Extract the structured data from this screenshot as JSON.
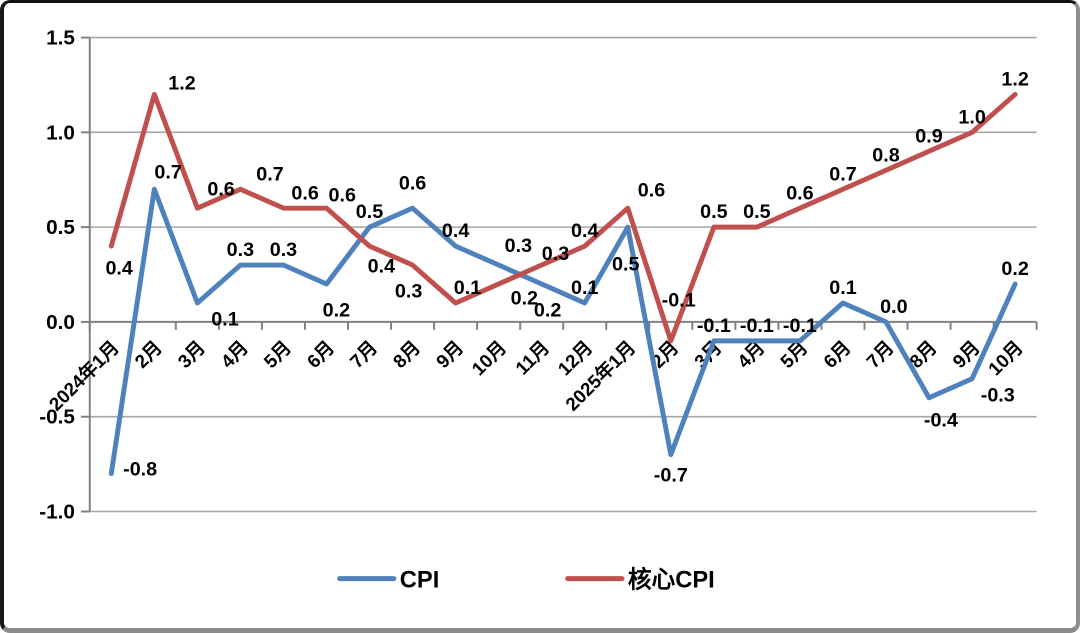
{
  "chart_data": {
    "type": "line",
    "title": "",
    "xlabel": "",
    "ylabel": "",
    "categories": [
      "2024年1月",
      "2月",
      "3月",
      "4月",
      "5月",
      "6月",
      "7月",
      "8月",
      "9月",
      "10月",
      "11月",
      "12月",
      "2025年1月",
      "2月",
      "3月",
      "4月",
      "5月",
      "6月",
      "7月",
      "8月",
      "9月",
      "10月"
    ],
    "series": [
      {
        "name": "CPI",
        "key": "cpi",
        "color": "#4F81BD",
        "values": [
          -0.8,
          0.7,
          0.1,
          0.3,
          0.3,
          0.2,
          0.5,
          0.6,
          0.4,
          0.3,
          0.2,
          0.1,
          0.5,
          -0.7,
          -0.1,
          -0.1,
          -0.1,
          0.1,
          0.0,
          -0.4,
          -0.3,
          0.2
        ],
        "label_pos": [
          "right",
          "above",
          "below",
          "above",
          "above",
          "below",
          "above",
          "above",
          "above",
          "above",
          "below",
          "above",
          "below",
          "below",
          "above",
          "above",
          "above",
          "above",
          "above",
          "below",
          "below",
          "above"
        ]
      },
      {
        "name": "核心CPI",
        "key": "core-cpi",
        "color": "#C0504D",
        "values": [
          0.4,
          1.2,
          0.6,
          0.7,
          0.6,
          0.6,
          0.4,
          0.3,
          0.1,
          0.2,
          0.3,
          0.4,
          0.6,
          -0.1,
          0.5,
          0.5,
          0.6,
          0.7,
          0.8,
          0.9,
          1.0,
          1.2
        ],
        "label_pos": [
          "below",
          "above",
          "above",
          "above",
          "above",
          "above",
          "below",
          "below",
          "above",
          "below",
          "above",
          "above",
          "above",
          "above",
          "above",
          "above",
          "above",
          "above",
          "above",
          "above",
          "above",
          "above"
        ]
      }
    ],
    "ylim": [
      -1.0,
      1.5
    ],
    "yticks": [
      1.5,
      1.0,
      0.5,
      0.0,
      -0.5,
      -1.0
    ],
    "grid": true,
    "legend_position": "bottom",
    "colors": {
      "grid": "#A6A6A6",
      "axis": "#808080",
      "label_text": "#000000",
      "background": "#FFFFFF"
    }
  }
}
